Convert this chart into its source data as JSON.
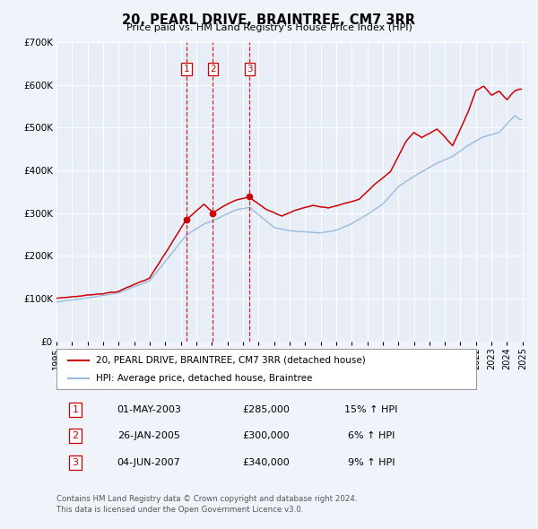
{
  "title": "20, PEARL DRIVE, BRAINTREE, CM7 3RR",
  "subtitle": "Price paid vs. HM Land Registry's House Price Index (HPI)",
  "legend_entry1": "20, PEARL DRIVE, BRAINTREE, CM7 3RR (detached house)",
  "legend_entry2": "HPI: Average price, detached house, Braintree",
  "transactions": [
    {
      "id": 1,
      "date": "01-MAY-2003",
      "date_num": 2003.37,
      "price": 285000,
      "hpi_pct": "15% ↑ HPI"
    },
    {
      "id": 2,
      "date": "26-JAN-2005",
      "date_num": 2005.07,
      "price": 300000,
      "hpi_pct": "6% ↑ HPI"
    },
    {
      "id": 3,
      "date": "04-JUN-2007",
      "date_num": 2007.42,
      "price": 340000,
      "hpi_pct": "9% ↑ HPI"
    }
  ],
  "price_color": "#cc0000",
  "hpi_color": "#99bbdd",
  "vline_color": "#cc0000",
  "background_color": "#f0f4fa",
  "plot_bg_color": "#e8eef8",
  "ylim": [
    0,
    700000
  ],
  "yticks": [
    0,
    100000,
    200000,
    300000,
    400000,
    500000,
    600000,
    700000
  ],
  "ytick_labels": [
    "£0",
    "£100K",
    "£200K",
    "£300K",
    "£400K",
    "£500K",
    "£600K",
    "£700K"
  ],
  "xlim_start": 1995,
  "xlim_end": 2025.3,
  "price_anchors_x": [
    1995.0,
    1997.0,
    1999.0,
    2001.0,
    2003.37,
    2004.5,
    2005.07,
    2006.5,
    2007.42,
    2008.5,
    2009.5,
    2010.5,
    2011.5,
    2012.5,
    2013.5,
    2014.5,
    2015.5,
    2016.5,
    2017.5,
    2018.0,
    2018.5,
    2019.5,
    2020.5,
    2021.5,
    2022.0,
    2022.5,
    2023.0,
    2023.5,
    2024.0,
    2024.5,
    2024.8
  ],
  "price_anchors_y": [
    100000,
    108000,
    118000,
    150000,
    285000,
    320000,
    300000,
    330000,
    340000,
    310000,
    295000,
    310000,
    320000,
    315000,
    325000,
    335000,
    370000,
    400000,
    470000,
    490000,
    480000,
    500000,
    460000,
    540000,
    590000,
    600000,
    580000,
    590000,
    570000,
    590000,
    595000
  ],
  "hpi_anchors_x": [
    1995.0,
    1997.0,
    1999.0,
    2001.0,
    2003.37,
    2004.5,
    2005.07,
    2006.5,
    2007.42,
    2009.0,
    2010.0,
    2011.0,
    2012.0,
    2013.0,
    2014.0,
    2015.0,
    2016.0,
    2017.0,
    2017.5,
    2018.5,
    2019.5,
    2020.5,
    2021.5,
    2022.5,
    2023.5,
    2024.0,
    2024.5,
    2024.8
  ],
  "hpi_anchors_y": [
    92000,
    100000,
    112000,
    140000,
    248000,
    275000,
    282000,
    308000,
    315000,
    268000,
    260000,
    258000,
    255000,
    262000,
    278000,
    300000,
    325000,
    365000,
    378000,
    400000,
    420000,
    435000,
    460000,
    480000,
    490000,
    510000,
    530000,
    520000
  ],
  "copyright_text": "Contains HM Land Registry data © Crown copyright and database right 2024.\nThis data is licensed under the Open Government Licence v3.0."
}
